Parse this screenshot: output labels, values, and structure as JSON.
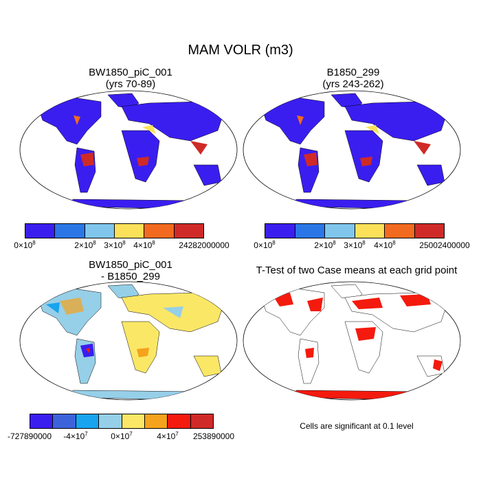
{
  "title": "MAM VOLR (m3)",
  "panels": [
    {
      "title_line1": "BW1850_piC_001",
      "title_line2": "(yrs 70-89)",
      "colorbar": {
        "colors": [
          "#3a1ef0",
          "#2a76e6",
          "#80c6ec",
          "#fbe15a",
          "#f26a1f",
          "#cf2a27"
        ],
        "labels": [
          "0×10",
          "2×10",
          "3×10",
          "4×10",
          "24282000000"
        ],
        "exponents": [
          "8",
          "8",
          "8",
          "8",
          ""
        ]
      }
    },
    {
      "title_line1": "B1850_299",
      "title_line2": "(yrs 243-262)",
      "colorbar": {
        "colors": [
          "#3a1ef0",
          "#2a76e6",
          "#80c6ec",
          "#fbe15a",
          "#f26a1f",
          "#cf2a27"
        ],
        "labels": [
          "0×10",
          "2×10",
          "3×10",
          "4×10",
          "25002400000"
        ],
        "exponents": [
          "8",
          "8",
          "8",
          "8",
          ""
        ]
      }
    },
    {
      "title_line1": "BW1850_piC_001",
      "title_line2": "- B1850_299",
      "colorbar": {
        "colors": [
          "#3a1ef0",
          "#3d63db",
          "#18a4ee",
          "#96cfe8",
          "#fbe766",
          "#f5a21c",
          "#f41a0e",
          "#cf2a27"
        ],
        "labels": [
          "-727890000",
          "-4×10",
          "0×10",
          "4×10",
          "253890000"
        ],
        "exponents": [
          "",
          "7",
          "7",
          "7",
          ""
        ]
      }
    },
    {
      "title_line1": "T-Test of two Case means at each grid point",
      "note": "Cells are significant at 0.1 level"
    }
  ]
}
